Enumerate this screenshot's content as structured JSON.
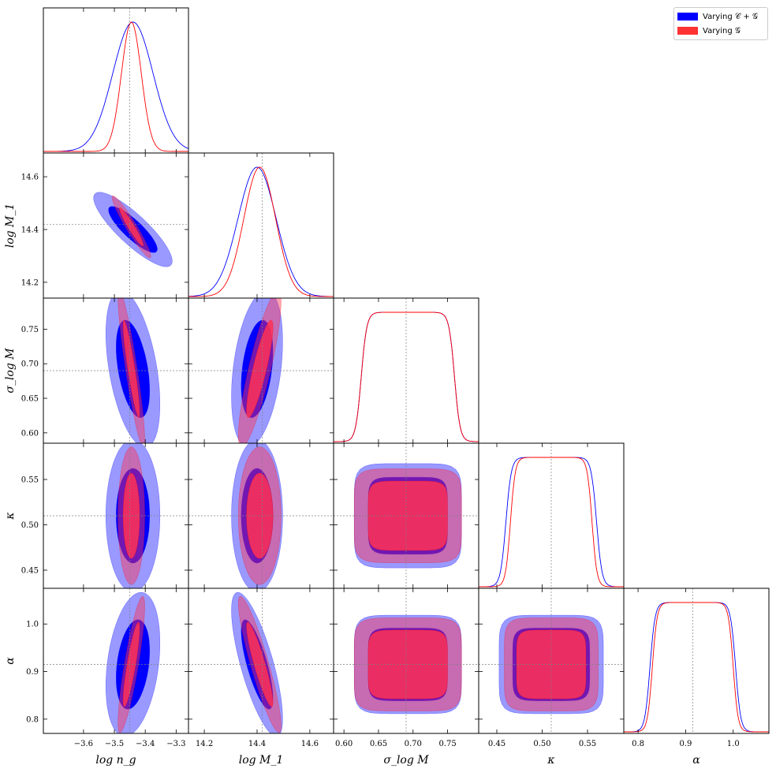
{
  "chart_data": {
    "type": "corner",
    "parameters": [
      {
        "key": "logng",
        "label": "log n_g",
        "truth": -3.45,
        "range": [
          -3.73,
          -3.26
        ],
        "ticks": [
          -3.6,
          -3.5,
          -3.4,
          -3.3
        ],
        "tick_labels": [
          "−3.6",
          "−3.5",
          "−3.4",
          "−3.3"
        ]
      },
      {
        "key": "logM1",
        "label": "log M_1",
        "truth": 14.42,
        "range": [
          14.14,
          14.69
        ],
        "ticks": [
          14.2,
          14.4,
          14.6
        ],
        "tick_labels": [
          "14.2",
          "14.4",
          "14.6"
        ]
      },
      {
        "key": "sigma",
        "label": "σ_log M",
        "truth": 0.69,
        "range": [
          0.585,
          0.795
        ],
        "ticks": [
          0.6,
          0.65,
          0.7,
          0.75
        ],
        "tick_labels": [
          "0.60",
          "0.65",
          "0.70",
          "0.75"
        ]
      },
      {
        "key": "kappa",
        "label": "κ",
        "truth": 0.51,
        "range": [
          0.43,
          0.59
        ],
        "ticks": [
          0.45,
          0.5,
          0.55
        ],
        "tick_labels": [
          "0.45",
          "0.50",
          "0.55"
        ]
      },
      {
        "key": "alpha",
        "label": "α",
        "truth": 0.915,
        "range": [
          0.77,
          1.075
        ],
        "ticks": [
          0.8,
          0.9,
          1.0
        ],
        "tick_labels": [
          "0.8",
          "0.9",
          "1.0"
        ]
      }
    ],
    "series": [
      {
        "name": "Varying 𝒞 + 𝒢",
        "color": "#0000ff",
        "params": {
          "logng": {
            "mean": -3.44,
            "sd": 0.065
          },
          "logM1": {
            "mean": 14.4,
            "sd": 0.072
          },
          "sigma": {
            "mean": 0.695,
            "sd": 0.04,
            "lo": 0.625,
            "hi": 0.76
          },
          "kappa": {
            "mean": 0.51,
            "sd": 0.028,
            "lo": 0.46,
            "hi": 0.56
          },
          "alpha": {
            "mean": 0.915,
            "sd": 0.05,
            "lo": 0.825,
            "hi": 1.005
          }
        },
        "corr": {
          "logng|logM1": -0.85,
          "logng|sigma": -0.45,
          "logM1|sigma": 0.35,
          "sigma|alpha": -0.25,
          "logM1|alpha": -0.75,
          "logng|alpha": 0.3
        }
      },
      {
        "name": "Varying 𝒢",
        "color": "#ff0000",
        "params": {
          "logng": {
            "mean": -3.445,
            "sd": 0.032
          },
          "logM1": {
            "mean": 14.41,
            "sd": 0.06
          },
          "sigma": {
            "mean": 0.69,
            "sd": 0.03,
            "lo": 0.625,
            "hi": 0.76
          },
          "kappa": {
            "mean": 0.51,
            "sd": 0.025,
            "lo": 0.465,
            "hi": 0.555
          },
          "alpha": {
            "mean": 0.92,
            "sd": 0.045,
            "lo": 0.83,
            "hi": 1.0
          }
        },
        "corr": {
          "logng|logM1": -0.95,
          "logng|sigma": -0.9,
          "logM1|sigma": 0.85,
          "sigma|alpha": -0.7,
          "logM1|alpha": -0.9,
          "logng|alpha": 0.85
        }
      }
    ],
    "legend_position": "top-right",
    "grid": false
  },
  "legend": {
    "series_1": "Varying 𝒞 + 𝒢",
    "series_2": "Varying 𝒢",
    "color_1": "#0000ff",
    "color_2": "#ff3333"
  }
}
